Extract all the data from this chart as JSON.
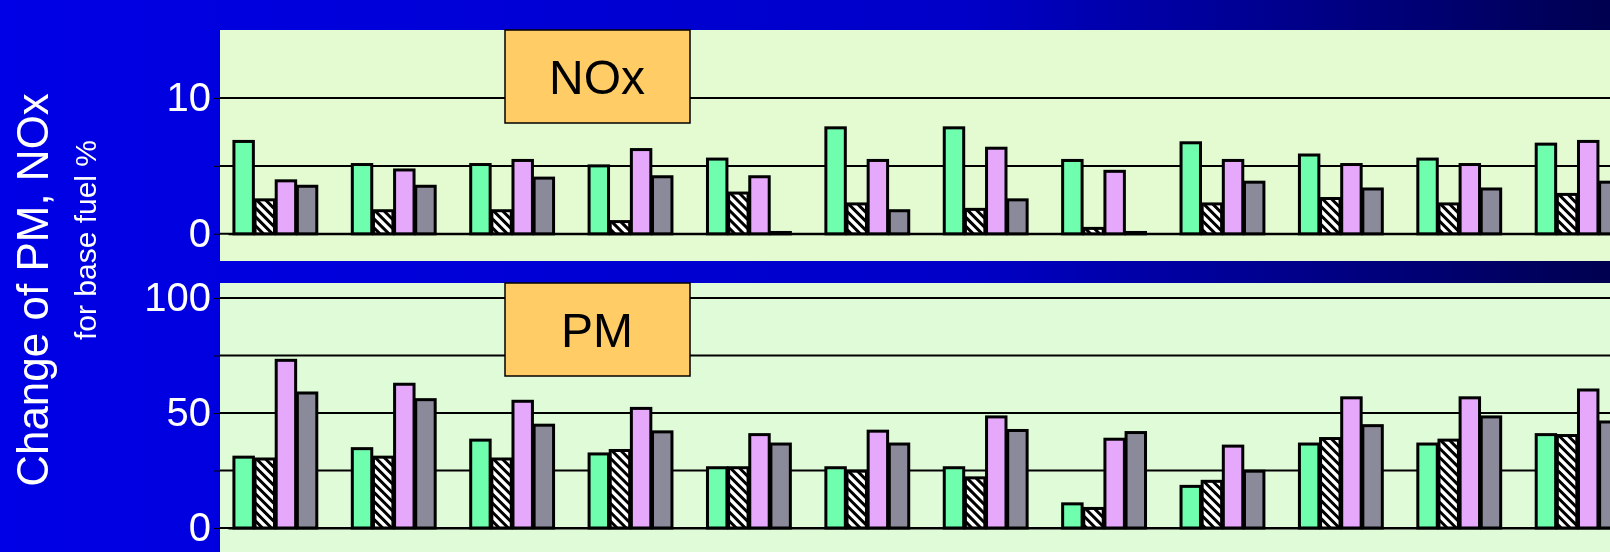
{
  "chart_data": [
    {
      "type": "bar",
      "title": "NOx",
      "ylabel": "Change of  PM, NOx\nfor base fuel %",
      "categories": [
        null,
        null,
        null,
        null,
        null,
        null,
        null,
        null,
        null,
        null,
        null,
        null
      ],
      "ylim": [
        -2,
        15
      ],
      "yticks": [
        0,
        {
          "value": 5,
          "label": null
        },
        10
      ],
      "grid": "y",
      "tick_labels": "y",
      "series": [
        {
          "color": "#6ffdae",
          "values": [
            6.8,
            5.1,
            5.1,
            5.0,
            5.5,
            7.8,
            7.8,
            5.4,
            6.7,
            5.8,
            5.5,
            6.6
          ]
        },
        {
          "color": "#ffffff",
          "values": [
            2.5,
            1.7,
            1.7,
            0.9,
            3.0,
            2.2,
            1.8,
            0.4,
            2.2,
            2.6,
            2.2,
            2.9
          ]
        },
        {
          "color": "#e6a8fb",
          "values": [
            3.9,
            4.7,
            5.4,
            6.2,
            4.2,
            5.4,
            6.3,
            4.6,
            5.4,
            5.1,
            5.1,
            6.8
          ]
        },
        {
          "color": "#8a8a9a",
          "values": [
            3.5,
            3.5,
            4.1,
            4.2,
            0.1,
            1.7,
            2.5,
            0.1,
            3.8,
            3.3,
            3.3,
            3.8
          ]
        }
      ]
    },
    {
      "type": "bar",
      "title": "PM",
      "categories": [
        null,
        null,
        null,
        null,
        null,
        null,
        null,
        null,
        null,
        null,
        null,
        null
      ],
      "ylim": [
        0,
        100
      ],
      "yticks": [
        0,
        {
          "value": 25,
          "label": null
        },
        50,
        {
          "value": 75,
          "label": null
        },
        100
      ],
      "grid": "y",
      "tick_labels": "y",
      "series": [
        {
          "color": "#6ffdae",
          "values": [
            30.8,
            34.5,
            38.2,
            32.2,
            26.2,
            26.2,
            26.2,
            10.5,
            18.1,
            36.5,
            36.5,
            40.6
          ]
        },
        {
          "color": "#ffffff",
          "values": [
            30,
            30.8,
            30,
            33.7,
            26.2,
            24.7,
            21.8,
            8.5,
            20.3,
            38.9,
            38.2,
            40.2
          ]
        },
        {
          "color": "#e6a8fb",
          "values": [
            72.9,
            62.5,
            55.1,
            52,
            40.6,
            42.1,
            48.3,
            38.6,
            35.6,
            56.6,
            56.6,
            60
          ]
        },
        {
          "color": "#8a8a9a",
          "values": [
            58.7,
            55.8,
            44.7,
            41.8,
            36.5,
            36.5,
            42.4,
            41.5,
            24.7,
            44.5,
            48.3,
            46.1
          ]
        }
      ]
    }
  ]
}
